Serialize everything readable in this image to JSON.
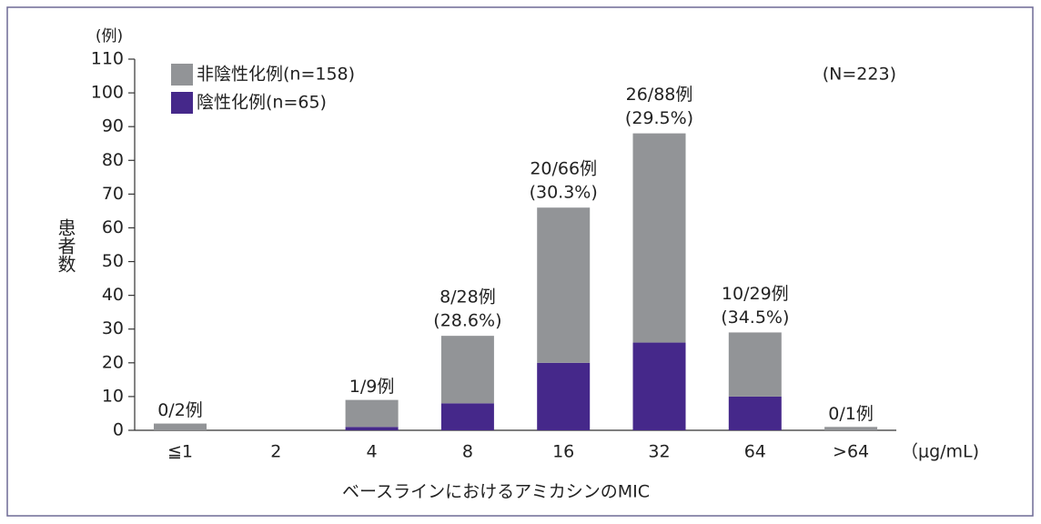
{
  "chart_data": {
    "type": "stacked_bar",
    "y_unit": "(例)",
    "ylabel": "患者数",
    "xlabel": "ベースラインにおけるアミカシンのMIC",
    "x_unit": "（μg/mL)",
    "note": "(N=223)",
    "categories": [
      "≦1",
      "2",
      "4",
      "8",
      "16",
      "32",
      "64",
      ">64"
    ],
    "series": [
      {
        "name": "陰性化例(n=65)",
        "color": "#45288a",
        "values": [
          0,
          0,
          1,
          8,
          20,
          26,
          10,
          0
        ]
      },
      {
        "name": "非陰性化例(n=158)",
        "color": "#929497",
        "values": [
          2,
          0,
          8,
          20,
          46,
          62,
          19,
          1
        ]
      }
    ],
    "annotations": [
      "0/2例",
      null,
      "1/9例",
      "8/28例",
      "20/66例",
      "26/88例",
      "10/29例",
      "0/1例"
    ],
    "annotation_pct": [
      null,
      null,
      null,
      "(28.6%)",
      "(30.3%)",
      "(29.5%)",
      "(34.5%)",
      null
    ],
    "ylim": [
      0,
      110
    ],
    "yticks": [
      0,
      10,
      20,
      30,
      40,
      50,
      60,
      70,
      80,
      90,
      100,
      110
    ],
    "legend": "upper left"
  }
}
